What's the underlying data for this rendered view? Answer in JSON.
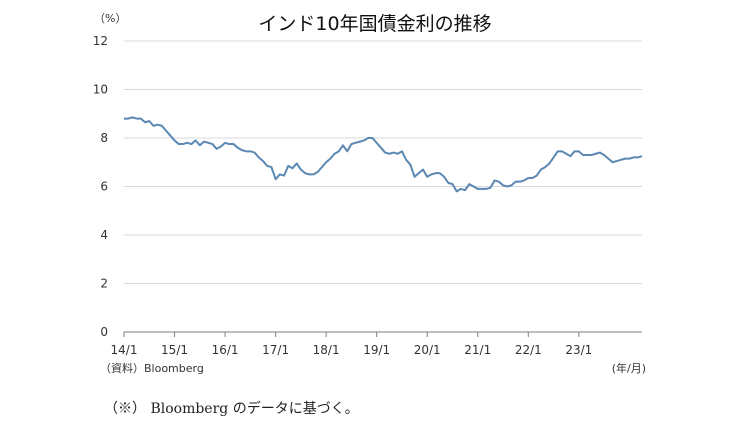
{
  "chart_data": {
    "type": "line",
    "title": "インド10年国債金利の推移",
    "y_unit": "（%）",
    "x_unit": "(年/月)",
    "source": "（資料）Bloomberg",
    "ylim": [
      0,
      12
    ],
    "yticks": [
      "0",
      "2",
      "4",
      "6",
      "8",
      "10",
      "12"
    ],
    "xticks": [
      "14/1",
      "15/1",
      "16/1",
      "17/1",
      "18/1",
      "19/1",
      "20/1",
      "21/1",
      "22/1",
      "23/1"
    ],
    "xlim": [
      0,
      123
    ],
    "grid": true,
    "color": "#5b88b2",
    "series": [
      {
        "x": [
          0,
          1,
          2,
          3,
          4,
          5,
          6,
          7,
          8,
          9,
          10,
          11,
          12,
          13,
          14,
          15,
          16,
          17,
          18,
          19,
          20,
          21,
          22,
          23,
          24,
          25,
          26,
          27,
          28,
          29,
          30,
          31,
          32,
          33,
          34,
          35,
          36,
          37,
          38,
          39,
          40,
          41,
          42,
          43,
          44,
          45,
          46,
          47,
          48,
          49,
          50,
          51,
          52,
          53,
          54,
          55,
          56,
          57,
          58,
          59,
          60,
          61,
          62,
          63,
          64,
          65,
          66,
          67,
          68,
          69,
          70,
          71,
          72,
          73,
          74,
          75,
          76,
          77,
          78,
          79,
          80,
          81,
          82,
          83,
          84,
          85,
          86,
          87,
          88,
          89,
          90,
          91,
          92,
          93,
          94,
          95,
          96,
          97,
          98,
          99,
          100,
          101,
          102,
          103,
          104,
          105,
          106,
          107,
          108,
          109,
          110,
          111,
          112,
          113,
          114,
          115,
          116,
          117,
          118,
          119,
          120,
          121,
          122,
          123
        ],
        "values": [
          8.8,
          8.8,
          8.85,
          8.8,
          8.8,
          8.65,
          8.7,
          8.5,
          8.55,
          8.5,
          8.3,
          8.1,
          7.9,
          7.75,
          7.75,
          7.8,
          7.75,
          7.9,
          7.7,
          7.85,
          7.8,
          7.75,
          7.55,
          7.65,
          7.8,
          7.75,
          7.75,
          7.6,
          7.5,
          7.45,
          7.45,
          7.4,
          7.2,
          7.05,
          6.85,
          6.8,
          6.3,
          6.5,
          6.45,
          6.85,
          6.75,
          6.95,
          6.7,
          6.55,
          6.5,
          6.5,
          6.6,
          6.8,
          7.0,
          7.15,
          7.35,
          7.45,
          7.7,
          7.45,
          7.75,
          7.8,
          7.85,
          7.9,
          8.0,
          8.0,
          7.8,
          7.6,
          7.4,
          7.35,
          7.4,
          7.35,
          7.45,
          7.1,
          6.9,
          6.4,
          6.55,
          6.7,
          6.4,
          6.5,
          6.55,
          6.55,
          6.4,
          6.15,
          6.1,
          5.8,
          5.9,
          5.85,
          6.1,
          6.0,
          5.9,
          5.9,
          5.9,
          5.95,
          6.25,
          6.2,
          6.05,
          6.0,
          6.05,
          6.2,
          6.2,
          6.25,
          6.35,
          6.35,
          6.45,
          6.7,
          6.8,
          6.95,
          7.2,
          7.45,
          7.45,
          7.35,
          7.25,
          7.45,
          7.45,
          7.3,
          7.3,
          7.3,
          7.35,
          7.4,
          7.3,
          7.15,
          7.0,
          7.05,
          7.1,
          7.15,
          7.15,
          7.2,
          7.2,
          7.25
        ]
      }
    ]
  },
  "footnote": "（※） Bloomberg のデータに基づく。"
}
